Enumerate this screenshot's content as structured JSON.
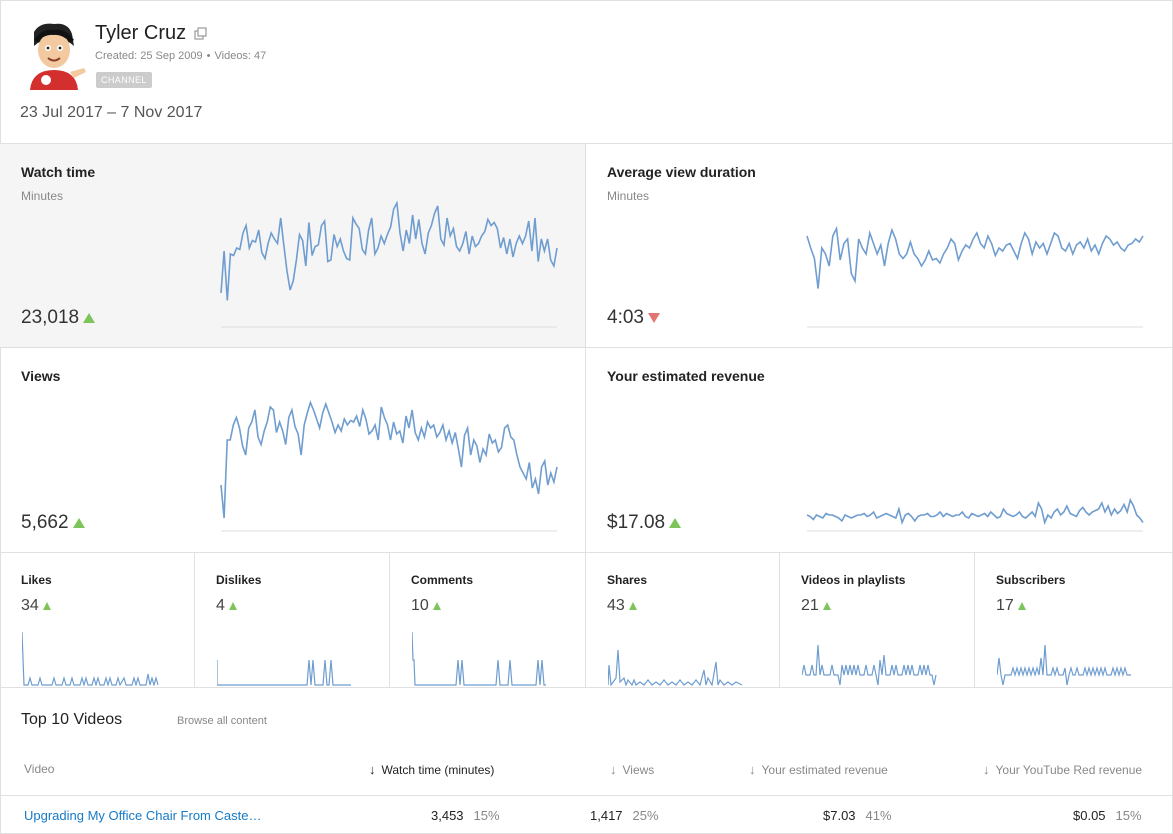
{
  "channel": {
    "name": "Tyler Cruz",
    "created": "Created: 25 Sep 2009",
    "videos": "Videos: 47",
    "badge": "CHANNEL",
    "date_range": "23 Jul 2017 – 7 Nov 2017"
  },
  "metrics": [
    {
      "id": "watch-time",
      "title": "Watch time",
      "sub": "Minutes",
      "value": "23,018",
      "trend": "up",
      "points": [
        22,
        50,
        17,
        48,
        47,
        52,
        51,
        62,
        67,
        52,
        57,
        56,
        64,
        49,
        45,
        55,
        62,
        58,
        55,
        72,
        54,
        37,
        24,
        30,
        44,
        61,
        57,
        40,
        69,
        47,
        53,
        54,
        67,
        70,
        43,
        44,
        61,
        53,
        58,
        50,
        45,
        44,
        72,
        68,
        65,
        51,
        48,
        64,
        72,
        48,
        52,
        60,
        55,
        61,
        66,
        78,
        82,
        62,
        50,
        64,
        55,
        74,
        58,
        71,
        55,
        48,
        62,
        67,
        75,
        80,
        58,
        54,
        72,
        60,
        65,
        53,
        50,
        55,
        63,
        48,
        60,
        53,
        55,
        60,
        63,
        71,
        67,
        69,
        65,
        52,
        59,
        48,
        58,
        46,
        55,
        60,
        55,
        60,
        70,
        50,
        72,
        43,
        58,
        50,
        58,
        44,
        40,
        52
      ]
    },
    {
      "id": "avg-view-duration",
      "title": "Average view duration",
      "sub": "Minutes",
      "value": "4:03",
      "trend": "down",
      "points": [
        60,
        52,
        45,
        25,
        52,
        48,
        40,
        60,
        65,
        44,
        55,
        58,
        35,
        30,
        58,
        52,
        48,
        62,
        55,
        48,
        54,
        40,
        55,
        64,
        58,
        48,
        45,
        48,
        56,
        48,
        45,
        40,
        44,
        50,
        44,
        45,
        42,
        48,
        52,
        58,
        55,
        44,
        50,
        54,
        52,
        58,
        62,
        55,
        52,
        60,
        55,
        47,
        52,
        50,
        54,
        55,
        50,
        45,
        55,
        62,
        58,
        48,
        56,
        52,
        55,
        48,
        55,
        62,
        60,
        52,
        50,
        55,
        48,
        54,
        56,
        52,
        58,
        50,
        54,
        48,
        55,
        60,
        58,
        54,
        56,
        52,
        50,
        54,
        55,
        58,
        56,
        60
      ]
    },
    {
      "id": "views",
      "title": "Views",
      "sub": "",
      "value": "5,662",
      "trend": "up",
      "points": [
        30,
        8,
        60,
        60,
        70,
        75,
        68,
        56,
        50,
        68,
        72,
        80,
        62,
        57,
        66,
        72,
        82,
        80,
        65,
        72,
        66,
        57,
        75,
        80,
        69,
        64,
        50,
        70,
        78,
        85,
        80,
        74,
        68,
        78,
        84,
        78,
        72,
        65,
        70,
        66,
        74,
        70,
        73,
        72,
        76,
        69,
        80,
        74,
        64,
        66,
        70,
        60,
        82,
        75,
        70,
        60,
        72,
        64,
        66,
        58,
        76,
        68,
        80,
        65,
        60,
        68,
        62,
        72,
        68,
        70,
        62,
        65,
        70,
        60,
        66,
        58,
        65,
        54,
        42,
        63,
        68,
        50,
        60,
        56,
        45,
        54,
        50,
        64,
        58,
        60,
        52,
        55,
        68,
        70,
        62,
        60,
        50,
        42,
        38,
        34,
        45,
        28,
        34,
        24,
        42,
        46,
        30,
        38,
        32,
        42
      ]
    },
    {
      "id": "revenue",
      "title": "Your estimated revenue",
      "sub": "",
      "value": "$17.08",
      "trend": "up",
      "points": [
        10,
        9,
        7,
        10,
        9,
        8,
        11,
        10,
        10,
        9,
        8,
        6,
        10,
        9,
        8,
        9,
        10,
        10,
        11,
        9,
        10,
        12,
        8,
        9,
        10,
        11,
        10,
        9,
        8,
        14,
        5,
        10,
        11,
        9,
        6,
        9,
        10,
        10,
        11,
        9,
        9,
        10,
        12,
        9,
        11,
        10,
        9,
        10,
        10,
        12,
        9,
        8,
        11,
        10,
        9,
        10,
        11,
        9,
        12,
        10,
        8,
        9,
        14,
        11,
        10,
        9,
        10,
        12,
        9,
        8,
        10,
        12,
        9,
        18,
        14,
        5,
        10,
        8,
        12,
        14,
        10,
        12,
        16,
        11,
        10,
        9,
        13,
        15,
        12,
        10,
        12,
        13,
        14,
        18,
        12,
        16,
        10,
        14,
        11,
        13,
        17,
        12,
        20,
        16,
        10,
        8,
        5
      ]
    }
  ],
  "mini_metrics": [
    {
      "id": "likes",
      "title": "Likes",
      "value": "34",
      "trend": "up"
    },
    {
      "id": "dislikes",
      "title": "Dislikes",
      "value": "4",
      "trend": "up"
    },
    {
      "id": "comments",
      "title": "Comments",
      "value": "10",
      "trend": "up"
    },
    {
      "id": "shares",
      "title": "Shares",
      "value": "43",
      "trend": "up"
    },
    {
      "id": "videos-in-playlists",
      "title": "Videos in playlists",
      "value": "21",
      "trend": "up"
    },
    {
      "id": "subscribers",
      "title": "Subscribers",
      "value": "17",
      "trend": "up"
    }
  ],
  "top_videos": {
    "title": "Top 10 Videos",
    "browse_label": "Browse all content",
    "columns": {
      "video": "Video",
      "watch_time": "Watch time (minutes)",
      "views": "Views",
      "revenue": "Your estimated revenue",
      "red_revenue": "Your YouTube Red revenue"
    },
    "rows": [
      {
        "title": "Upgrading My Office Chair From Caste…",
        "watch_time": "3,453",
        "watch_pct": "15%",
        "views": "1,417",
        "views_pct": "25%",
        "revenue": "$7.03",
        "revenue_pct": "41%",
        "red_revenue": "$0.05",
        "red_pct": "15%"
      }
    ]
  },
  "colors": {
    "line": "#6f9dd0",
    "up": "#7dc55b",
    "down": "#e27474",
    "link": "#167ac6"
  }
}
